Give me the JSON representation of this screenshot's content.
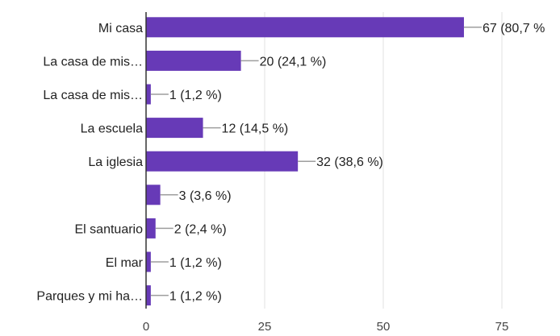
{
  "colors": {
    "bar": "#673ab7",
    "leader_line": "#9e9e9e",
    "axis": "#333333",
    "grid": "#e0e0e0",
    "text": "#222222",
    "tick_text": "#444444"
  },
  "chart_data": {
    "type": "bar",
    "orientation": "horizontal",
    "categories": [
      "Mi casa",
      "La casa de mis…",
      "La casa de mis…",
      "La escuela",
      "La iglesia",
      "",
      "El santuario",
      "El mar",
      "Parques y mi ha…"
    ],
    "values": [
      67,
      20,
      1,
      12,
      32,
      3,
      2,
      1,
      1
    ],
    "value_labels": [
      "67 (80,7 %",
      "20 (24,1 %)",
      "1 (1,2 %)",
      "12 (14,5 %)",
      "32 (38,6 %)",
      "3 (3,6 %)",
      "2 (2,4 %)",
      "1 (1,2 %)",
      "1 (1,2 %)"
    ],
    "xlim": [
      0,
      75
    ],
    "xticks": [
      0,
      25,
      50,
      75
    ],
    "xtick_labels": [
      "0",
      "25",
      "50",
      "75"
    ],
    "grid": true,
    "title": "",
    "xlabel": "",
    "ylabel": ""
  }
}
